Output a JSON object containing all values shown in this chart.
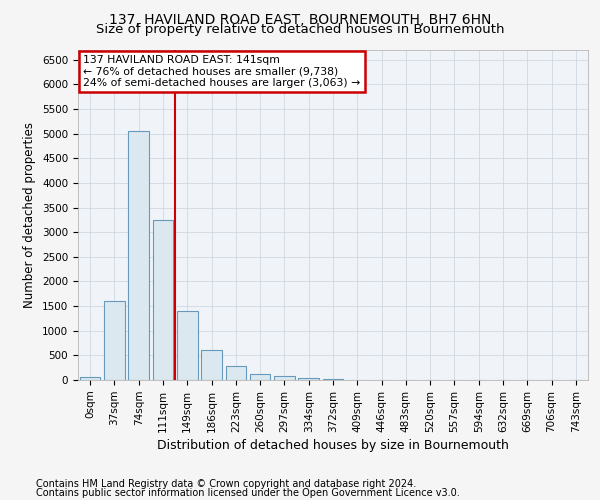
{
  "title1": "137, HAVILAND ROAD EAST, BOURNEMOUTH, BH7 6HN",
  "title2": "Size of property relative to detached houses in Bournemouth",
  "xlabel": "Distribution of detached houses by size in Bournemouth",
  "ylabel": "Number of detached properties",
  "footer1": "Contains HM Land Registry data © Crown copyright and database right 2024.",
  "footer2": "Contains public sector information licensed under the Open Government Licence v3.0.",
  "annotation_line1": "137 HAVILAND ROAD EAST: 141sqm",
  "annotation_line2": "← 76% of detached houses are smaller (9,738)",
  "annotation_line3": "24% of semi-detached houses are larger (3,063) →",
  "bar_labels": [
    "0sqm",
    "37sqm",
    "74sqm",
    "111sqm",
    "149sqm",
    "186sqm",
    "223sqm",
    "260sqm",
    "297sqm",
    "334sqm",
    "372sqm",
    "409sqm",
    "446sqm",
    "483sqm",
    "520sqm",
    "557sqm",
    "594sqm",
    "632sqm",
    "669sqm",
    "706sqm",
    "743sqm"
  ],
  "bar_values": [
    55,
    1600,
    5050,
    3250,
    1400,
    600,
    280,
    130,
    80,
    40,
    20,
    10,
    5,
    2,
    1,
    0,
    0,
    0,
    0,
    0,
    0
  ],
  "bar_color": "#dce8f0",
  "bar_edge_color": "#6699bb",
  "reference_line_x": 3.5,
  "reference_line_color": "#cc0000",
  "ylim": [
    0,
    6700
  ],
  "yticks": [
    0,
    500,
    1000,
    1500,
    2000,
    2500,
    3000,
    3500,
    4000,
    4500,
    5000,
    5500,
    6000,
    6500
  ],
  "bg_color": "#f5f5f5",
  "plot_bg_color": "#f0f4f8",
  "grid_color": "#c8d4de",
  "annotation_box_color": "#ffffff",
  "annotation_box_edge": "#cc0000",
  "title1_fontsize": 10,
  "title2_fontsize": 9.5,
  "xlabel_fontsize": 9,
  "ylabel_fontsize": 8.5,
  "tick_fontsize": 7.5,
  "footer_fontsize": 7
}
